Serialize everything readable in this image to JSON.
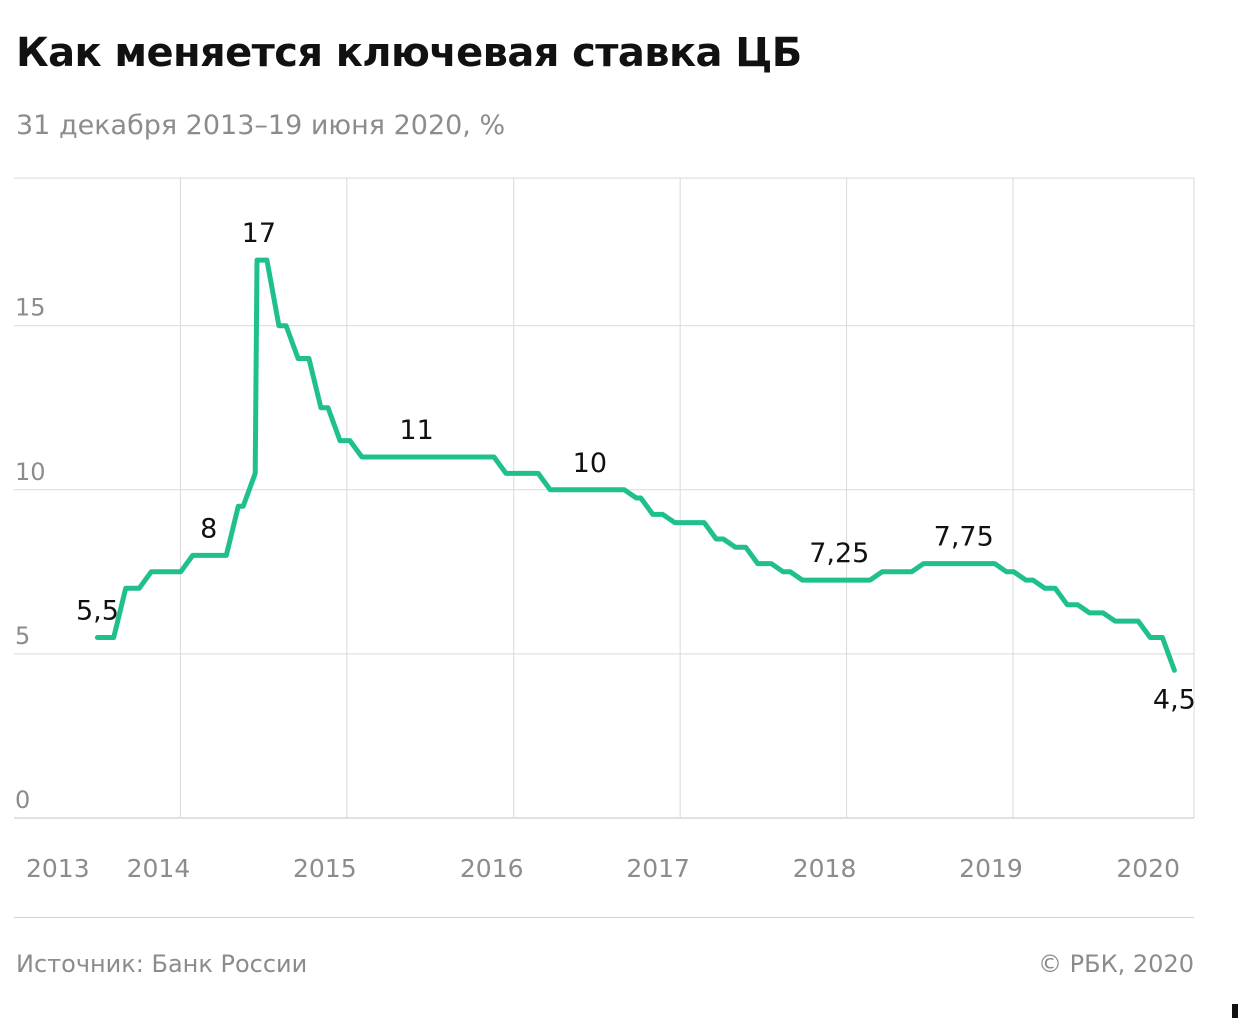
{
  "header": {
    "title": "Как меняется ключевая ставка ЦБ",
    "subtitle": "31 декабря 2013–19 июня 2020, %"
  },
  "footer": {
    "source": "Источник: Банк России",
    "copyright": "© РБК, 2020"
  },
  "colors": {
    "line": "#1fc08e",
    "grid": "#d9d9d9",
    "tick_text": "#8c8c8c",
    "label_text": "#111111"
  },
  "chart_data": {
    "type": "line",
    "title": "Как меняется ключевая ставка ЦБ",
    "subtitle": "31 декабря 2013–19 июня 2020, %",
    "xlabel": "",
    "ylabel": "",
    "ylim": [
      0,
      19.5
    ],
    "yticks": [
      {
        "value": 0,
        "label": "0"
      },
      {
        "value": 5,
        "label": "5"
      },
      {
        "value": 10,
        "label": "10"
      },
      {
        "value": 15,
        "label": "15"
      }
    ],
    "xlim": [
      "2013-07-01",
      "2020-08-01"
    ],
    "xticks": [
      {
        "value": "2013-07-01",
        "label": "2013"
      },
      {
        "value": "2014-07-01",
        "label": "2014"
      },
      {
        "value": "2015-07-01",
        "label": "2015"
      },
      {
        "value": "2016-07-01",
        "label": "2016"
      },
      {
        "value": "2017-07-01",
        "label": "2017"
      },
      {
        "value": "2018-07-01",
        "label": "2018"
      },
      {
        "value": "2019-07-01",
        "label": "2019"
      },
      {
        "value": "2020-07-01",
        "label": "2020"
      }
    ],
    "grid": true,
    "series": [
      {
        "step": true,
        "points": [
          {
            "date": "2013-12-31",
            "value": 5.5
          },
          {
            "date": "2014-03-03",
            "value": 7.0
          },
          {
            "date": "2014-04-28",
            "value": 7.5
          },
          {
            "date": "2014-07-28",
            "value": 8.0
          },
          {
            "date": "2014-11-05",
            "value": 9.5
          },
          {
            "date": "2014-12-12",
            "value": 10.5
          },
          {
            "date": "2014-12-16",
            "value": 17.0
          },
          {
            "date": "2015-02-02",
            "value": 15.0
          },
          {
            "date": "2015-03-16",
            "value": 14.0
          },
          {
            "date": "2015-05-05",
            "value": 12.5
          },
          {
            "date": "2015-06-16",
            "value": 11.5
          },
          {
            "date": "2015-08-03",
            "value": 11.0
          },
          {
            "date": "2016-06-14",
            "value": 10.5
          },
          {
            "date": "2016-09-19",
            "value": 10.0
          },
          {
            "date": "2017-03-27",
            "value": 9.75
          },
          {
            "date": "2017-05-02",
            "value": 9.25
          },
          {
            "date": "2017-06-19",
            "value": 9.0
          },
          {
            "date": "2017-09-18",
            "value": 8.5
          },
          {
            "date": "2017-10-30",
            "value": 8.25
          },
          {
            "date": "2017-12-18",
            "value": 7.75
          },
          {
            "date": "2018-02-12",
            "value": 7.5
          },
          {
            "date": "2018-03-26",
            "value": 7.25
          },
          {
            "date": "2018-09-17",
            "value": 7.5
          },
          {
            "date": "2018-12-17",
            "value": 7.75
          },
          {
            "date": "2019-06-17",
            "value": 7.5
          },
          {
            "date": "2019-07-29",
            "value": 7.25
          },
          {
            "date": "2019-09-09",
            "value": 7.0
          },
          {
            "date": "2019-10-28",
            "value": 6.5
          },
          {
            "date": "2019-12-16",
            "value": 6.25
          },
          {
            "date": "2020-02-10",
            "value": 6.0
          },
          {
            "date": "2020-04-27",
            "value": 5.5
          },
          {
            "date": "2020-06-19",
            "value": 4.5
          }
        ]
      }
    ],
    "annotations": [
      {
        "label": "5,5",
        "date": "2013-12-31",
        "value": 5.5,
        "pos": "above"
      },
      {
        "label": "8",
        "date": "2014-09-01",
        "value": 8.0,
        "pos": "above"
      },
      {
        "label": "17",
        "date": "2014-12-20",
        "value": 17.0,
        "pos": "above"
      },
      {
        "label": "11",
        "date": "2015-12-01",
        "value": 11.0,
        "pos": "above"
      },
      {
        "label": "10",
        "date": "2016-12-15",
        "value": 10.0,
        "pos": "above"
      },
      {
        "label": "7,25",
        "date": "2018-06-15",
        "value": 7.25,
        "pos": "above"
      },
      {
        "label": "7,75",
        "date": "2019-03-15",
        "value": 7.75,
        "pos": "above"
      },
      {
        "label": "4,5",
        "date": "2020-06-19",
        "value": 4.5,
        "pos": "below"
      }
    ]
  }
}
